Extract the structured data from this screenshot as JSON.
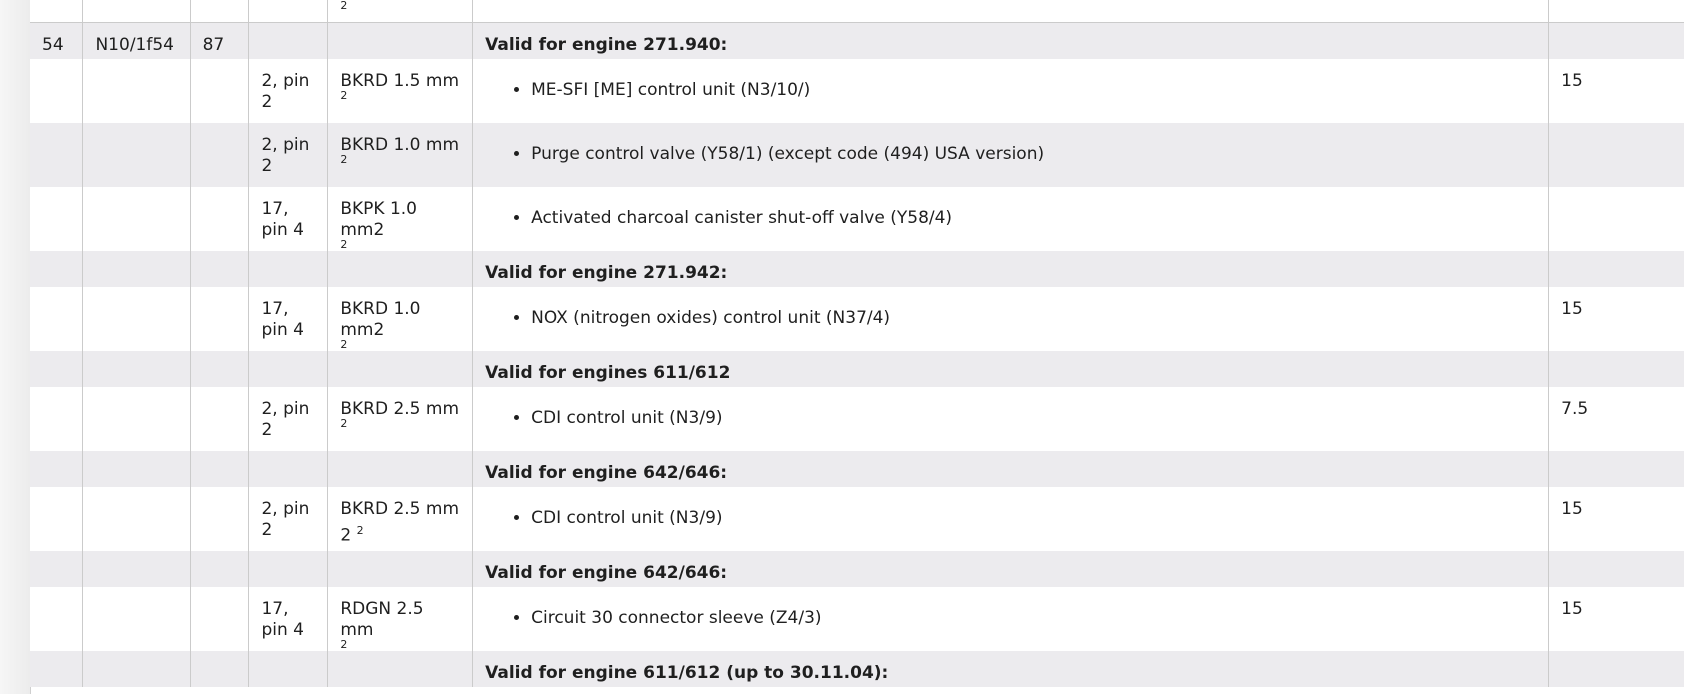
{
  "top_row": {
    "wire_sup": "2"
  },
  "first": {
    "no": "54",
    "fuse": "N10/1f54",
    "relay": "87",
    "heading": "Valid for engine 271.940:"
  },
  "rows": [
    {
      "conn": "2, pin 2",
      "wire_main": "BKRD 1.5 mm",
      "wire_sup": "2",
      "item": "ME-SFI [ME] control unit (N3/10/)",
      "amp": "15",
      "shade": "white"
    },
    {
      "conn": "2, pin 2",
      "wire_main": "BKRD 1.0 mm",
      "wire_sup": "2",
      "item": "Purge control valve (Y58/1) (except code (494) USA version)",
      "amp": "",
      "shade": "gray"
    },
    {
      "conn": "17, pin 4",
      "wire_main": "BKPK 1.0 mm2",
      "wire_sup": "2",
      "item": "Activated charcoal canister shut-off valve (Y58/4)",
      "amp": "",
      "shade": "white"
    }
  ],
  "group2": {
    "heading": "Valid for engine 271.942:",
    "conn": "17, pin 4",
    "wire_main": "BKRD 1.0 mm2",
    "wire_sup": "2",
    "item": "NOX (nitrogen oxides) control unit (N37/4)",
    "amp": "15"
  },
  "group3": {
    "heading": "Valid for engines 611/612",
    "conn": "2, pin 2",
    "wire_main": "BKRD 2.5 mm",
    "wire_sup": "2",
    "item": "CDI control unit (N3/9)",
    "amp": "7.5"
  },
  "group4": {
    "heading": "Valid for engine 642/646:",
    "conn": "2, pin 2",
    "wire_main": "BKRD 2.5 mm",
    "wire_line2": "2",
    "wire_sup": "2",
    "item": "CDI control unit (N3/9)",
    "amp": "15"
  },
  "group5": {
    "heading": "Valid for engine 642/646:",
    "conn": "17, pin 4",
    "wire_main": "RDGN 2.5 mm",
    "wire_sup": "2",
    "item": "Circuit 30 connector sleeve (Z4/3)",
    "amp": "15"
  },
  "group6": {
    "heading": "Valid for engine 611/612 (up to 30.11.04):"
  }
}
